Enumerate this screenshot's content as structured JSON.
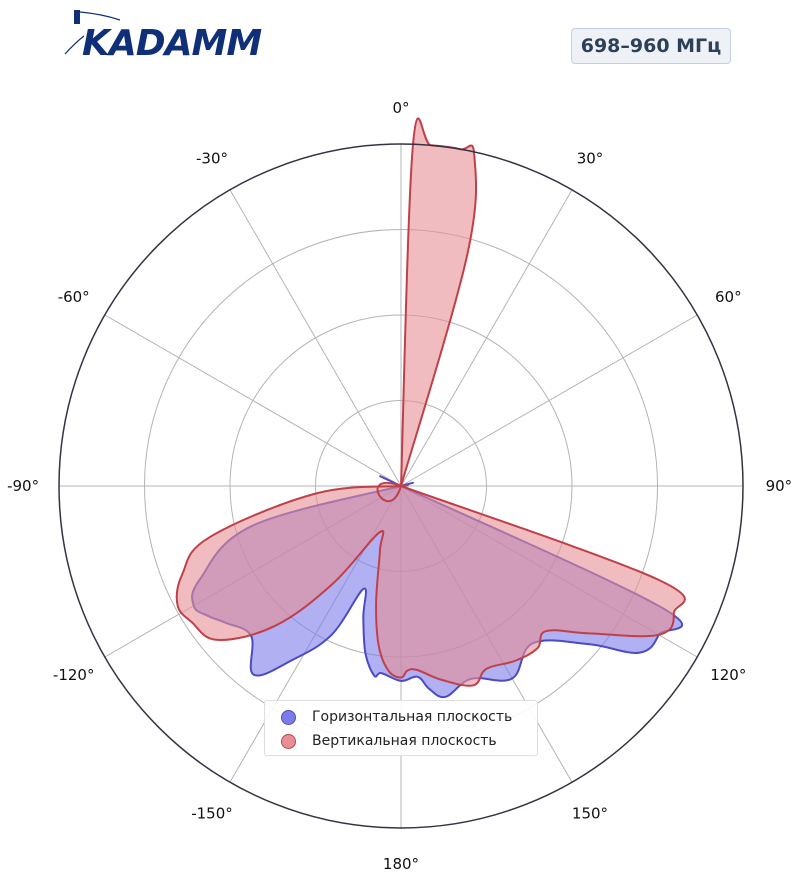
{
  "logo": {
    "text": "KADAMM"
  },
  "band_label": "698–960 МГц",
  "colors": {
    "horizontal_fill": "#7b7bea",
    "horizontal_stroke": "#4b4bc4",
    "vertical_fill": "#e88f95",
    "vertical_stroke": "#c0404a",
    "grid": "#b4b4b4",
    "outer_ring": "#333344",
    "logo": "#0f2f78"
  },
  "chart_data": {
    "type": "polar",
    "title": "",
    "angle_ticks": [
      "0°",
      "30°",
      "60°",
      "90°",
      "120°",
      "150°",
      "180°",
      "-150°",
      "-120°",
      "-90°",
      "-60°",
      "-30°"
    ],
    "r_range": [
      0,
      1
    ],
    "ring_count": 4,
    "grid": true,
    "legend_position": "bottom-center",
    "series": [
      {
        "name": "Горизонтальная плоскость",
        "angles": [
          0,
          90,
          115,
          120,
          125,
          130,
          140,
          150,
          160,
          168,
          172,
          175,
          180,
          186,
          188,
          192,
          196,
          200,
          205,
          212,
          218,
          225,
          232,
          236,
          240,
          245,
          255,
          270,
          360
        ],
        "values": [
          0,
          0,
          0.84,
          0.87,
          0.85,
          0.72,
          0.6,
          0.65,
          0.6,
          0.63,
          0.6,
          0.56,
          0.57,
          0.55,
          0.56,
          0.5,
          0.4,
          0.32,
          0.48,
          0.6,
          0.7,
          0.62,
          0.65,
          0.68,
          0.7,
          0.65,
          0.45,
          0,
          0
        ]
      },
      {
        "name": "Вертикальная плоскость",
        "angles": [
          0,
          2,
          5,
          10,
          12.5,
          16,
          30,
          100,
          110,
          115,
          120,
          128,
          135,
          140,
          147,
          155,
          160,
          168,
          175,
          178,
          180,
          184,
          188,
          192,
          198,
          205,
          215,
          222,
          230,
          237,
          242,
          248,
          255,
          265,
          350,
          360
        ],
        "values": [
          0,
          0.995,
          1.0,
          1.0,
          0.99,
          0.7,
          0,
          0,
          0.8,
          0.88,
          0.87,
          0.7,
          0.6,
          0.62,
          0.61,
          0.59,
          0.62,
          0.58,
          0.54,
          0.54,
          0.56,
          0.54,
          0.47,
          0.35,
          0.2,
          0.15,
          0.35,
          0.55,
          0.7,
          0.73,
          0.74,
          0.69,
          0.58,
          0.25,
          0,
          0
        ]
      }
    ]
  }
}
